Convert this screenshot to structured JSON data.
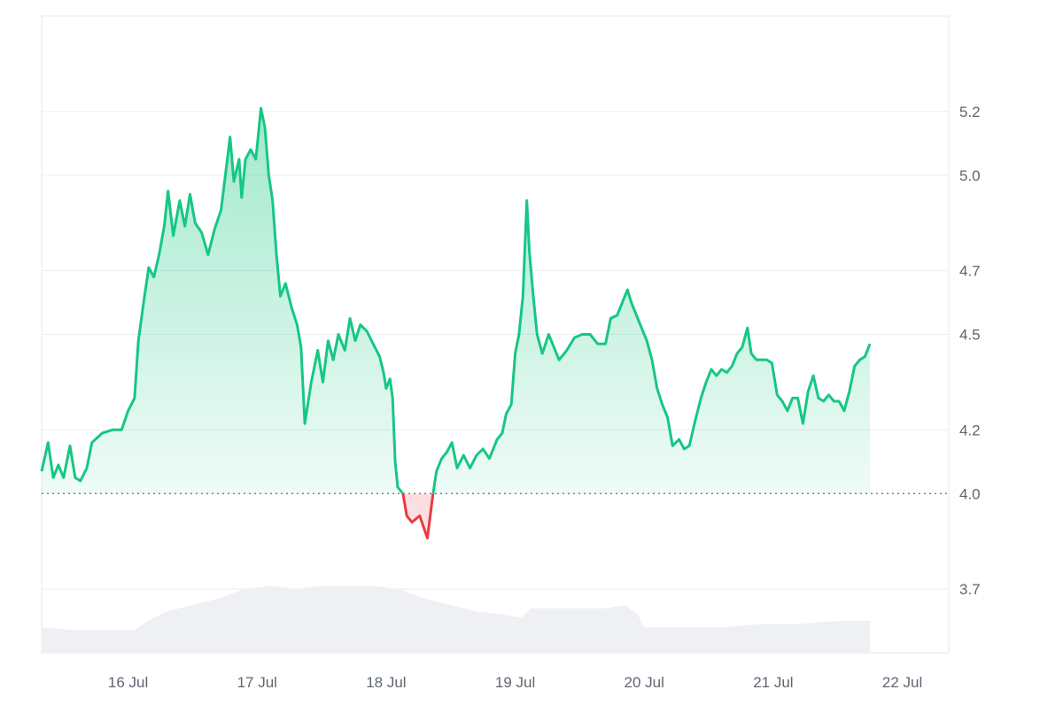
{
  "chart_data": {
    "type": "area",
    "baseline": 4.0,
    "x_ticks": [
      "16 Jul",
      "17 Jul",
      "18 Jul",
      "19 Jul",
      "20 Jul",
      "21 Jul",
      "22 Jul"
    ],
    "y_ticks": [
      "3.7",
      "4.0",
      "4.2",
      "4.5",
      "4.7",
      "5.0",
      "5.2"
    ],
    "y_tick_values": [
      3.7,
      4.0,
      4.2,
      4.5,
      4.7,
      5.0,
      5.2
    ],
    "ylim": [
      3.5,
      5.5
    ],
    "xlim_days": [
      15.33,
      22.36
    ],
    "x_tick_days": [
      16,
      17,
      18,
      19,
      20,
      21,
      22
    ],
    "grid": true,
    "colors": {
      "above": "#16c784",
      "below": "#ea3943",
      "volume": "#eef0f4",
      "grid": "#eceef1",
      "baseline": "#7a808a"
    },
    "price_series": [
      [
        15.33,
        4.07
      ],
      [
        15.38,
        4.16
      ],
      [
        15.42,
        4.05
      ],
      [
        15.46,
        4.09
      ],
      [
        15.5,
        4.05
      ],
      [
        15.55,
        4.15
      ],
      [
        15.59,
        4.05
      ],
      [
        15.63,
        4.04
      ],
      [
        15.68,
        4.08
      ],
      [
        15.72,
        4.16
      ],
      [
        15.8,
        4.19
      ],
      [
        15.88,
        4.2
      ],
      [
        15.95,
        4.2
      ],
      [
        16.0,
        4.26
      ],
      [
        16.05,
        4.3
      ],
      [
        16.08,
        4.48
      ],
      [
        16.12,
        4.6
      ],
      [
        16.16,
        4.71
      ],
      [
        16.2,
        4.68
      ],
      [
        16.24,
        4.75
      ],
      [
        16.28,
        4.84
      ],
      [
        16.31,
        4.95
      ],
      [
        16.35,
        4.81
      ],
      [
        16.4,
        4.92
      ],
      [
        16.44,
        4.84
      ],
      [
        16.48,
        4.94
      ],
      [
        16.52,
        4.85
      ],
      [
        16.57,
        4.82
      ],
      [
        16.62,
        4.75
      ],
      [
        16.67,
        4.83
      ],
      [
        16.72,
        4.89
      ],
      [
        16.76,
        5.02
      ],
      [
        16.79,
        5.12
      ],
      [
        16.82,
        4.98
      ],
      [
        16.86,
        5.05
      ],
      [
        16.88,
        4.93
      ],
      [
        16.91,
        5.05
      ],
      [
        16.95,
        5.08
      ],
      [
        16.99,
        5.05
      ],
      [
        17.03,
        5.21
      ],
      [
        17.06,
        5.15
      ],
      [
        17.09,
        5.0
      ],
      [
        17.12,
        4.92
      ],
      [
        17.15,
        4.75
      ],
      [
        17.18,
        4.62
      ],
      [
        17.22,
        4.66
      ],
      [
        17.27,
        4.58
      ],
      [
        17.31,
        4.53
      ],
      [
        17.34,
        4.46
      ],
      [
        17.37,
        4.22
      ],
      [
        17.42,
        4.35
      ],
      [
        17.47,
        4.45
      ],
      [
        17.51,
        4.35
      ],
      [
        17.55,
        4.48
      ],
      [
        17.59,
        4.42
      ],
      [
        17.63,
        4.5
      ],
      [
        17.68,
        4.45
      ],
      [
        17.72,
        4.55
      ],
      [
        17.76,
        4.48
      ],
      [
        17.8,
        4.53
      ],
      [
        17.85,
        4.51
      ],
      [
        17.9,
        4.47
      ],
      [
        17.95,
        4.43
      ],
      [
        17.98,
        4.38
      ],
      [
        18.0,
        4.33
      ],
      [
        18.03,
        4.36
      ],
      [
        18.05,
        4.3
      ],
      [
        18.07,
        4.1
      ],
      [
        18.09,
        4.02
      ],
      [
        18.13,
        4.0
      ],
      [
        18.16,
        3.93
      ],
      [
        18.2,
        3.91
      ],
      [
        18.26,
        3.93
      ],
      [
        18.32,
        3.86
      ],
      [
        18.36,
        3.99
      ],
      [
        18.39,
        4.07
      ],
      [
        18.43,
        4.11
      ],
      [
        18.47,
        4.13
      ],
      [
        18.51,
        4.16
      ],
      [
        18.55,
        4.08
      ],
      [
        18.6,
        4.12
      ],
      [
        18.65,
        4.08
      ],
      [
        18.7,
        4.12
      ],
      [
        18.75,
        4.14
      ],
      [
        18.8,
        4.11
      ],
      [
        18.86,
        4.17
      ],
      [
        18.9,
        4.19
      ],
      [
        18.93,
        4.25
      ],
      [
        18.97,
        4.28
      ],
      [
        19.0,
        4.44
      ],
      [
        19.03,
        4.5
      ],
      [
        19.06,
        4.62
      ],
      [
        19.09,
        4.92
      ],
      [
        19.11,
        4.76
      ],
      [
        19.14,
        4.62
      ],
      [
        19.17,
        4.5
      ],
      [
        19.21,
        4.44
      ],
      [
        19.26,
        4.5
      ],
      [
        19.3,
        4.46
      ],
      [
        19.34,
        4.42
      ],
      [
        19.4,
        4.45
      ],
      [
        19.46,
        4.49
      ],
      [
        19.52,
        4.5
      ],
      [
        19.58,
        4.5
      ],
      [
        19.64,
        4.47
      ],
      [
        19.7,
        4.47
      ],
      [
        19.74,
        4.55
      ],
      [
        19.79,
        4.56
      ],
      [
        19.83,
        4.6
      ],
      [
        19.87,
        4.64
      ],
      [
        19.9,
        4.6
      ],
      [
        19.94,
        4.56
      ],
      [
        19.98,
        4.52
      ],
      [
        20.02,
        4.48
      ],
      [
        20.06,
        4.42
      ],
      [
        20.1,
        4.33
      ],
      [
        20.14,
        4.28
      ],
      [
        20.18,
        4.24
      ],
      [
        20.22,
        4.15
      ],
      [
        20.27,
        4.17
      ],
      [
        20.31,
        4.14
      ],
      [
        20.35,
        4.15
      ],
      [
        20.39,
        4.22
      ],
      [
        20.44,
        4.3
      ],
      [
        20.48,
        4.35
      ],
      [
        20.52,
        4.39
      ],
      [
        20.56,
        4.37
      ],
      [
        20.6,
        4.39
      ],
      [
        20.64,
        4.38
      ],
      [
        20.68,
        4.4
      ],
      [
        20.72,
        4.44
      ],
      [
        20.76,
        4.46
      ],
      [
        20.8,
        4.52
      ],
      [
        20.83,
        4.44
      ],
      [
        20.87,
        4.42
      ],
      [
        20.91,
        4.42
      ],
      [
        20.95,
        4.42
      ],
      [
        20.99,
        4.41
      ],
      [
        21.03,
        4.31
      ],
      [
        21.07,
        4.29
      ],
      [
        21.11,
        4.26
      ],
      [
        21.15,
        4.3
      ],
      [
        21.19,
        4.3
      ],
      [
        21.23,
        4.22
      ],
      [
        21.27,
        4.32
      ],
      [
        21.31,
        4.37
      ],
      [
        21.35,
        4.3
      ],
      [
        21.39,
        4.29
      ],
      [
        21.43,
        4.31
      ],
      [
        21.47,
        4.29
      ],
      [
        21.51,
        4.29
      ],
      [
        21.55,
        4.26
      ],
      [
        21.59,
        4.32
      ],
      [
        21.63,
        4.4
      ],
      [
        21.67,
        4.42
      ],
      [
        21.71,
        4.43
      ],
      [
        21.75,
        4.47
      ]
    ],
    "volume_series": [
      [
        15.33,
        3.58
      ],
      [
        15.6,
        3.57
      ],
      [
        15.9,
        3.57
      ],
      [
        16.05,
        3.57
      ],
      [
        16.15,
        3.6
      ],
      [
        16.3,
        3.63
      ],
      [
        16.5,
        3.65
      ],
      [
        16.7,
        3.67
      ],
      [
        16.9,
        3.7
      ],
      [
        17.1,
        3.71
      ],
      [
        17.3,
        3.7
      ],
      [
        17.5,
        3.71
      ],
      [
        17.7,
        3.71
      ],
      [
        17.9,
        3.71
      ],
      [
        18.1,
        3.7
      ],
      [
        18.3,
        3.67
      ],
      [
        18.5,
        3.65
      ],
      [
        18.7,
        3.63
      ],
      [
        18.9,
        3.62
      ],
      [
        19.05,
        3.61
      ],
      [
        19.12,
        3.64
      ],
      [
        19.3,
        3.64
      ],
      [
        19.5,
        3.64
      ],
      [
        19.7,
        3.64
      ],
      [
        19.85,
        3.65
      ],
      [
        19.95,
        3.62
      ],
      [
        20.0,
        3.58
      ],
      [
        20.3,
        3.58
      ],
      [
        20.6,
        3.58
      ],
      [
        20.9,
        3.59
      ],
      [
        21.2,
        3.59
      ],
      [
        21.5,
        3.6
      ],
      [
        21.75,
        3.6
      ]
    ]
  }
}
